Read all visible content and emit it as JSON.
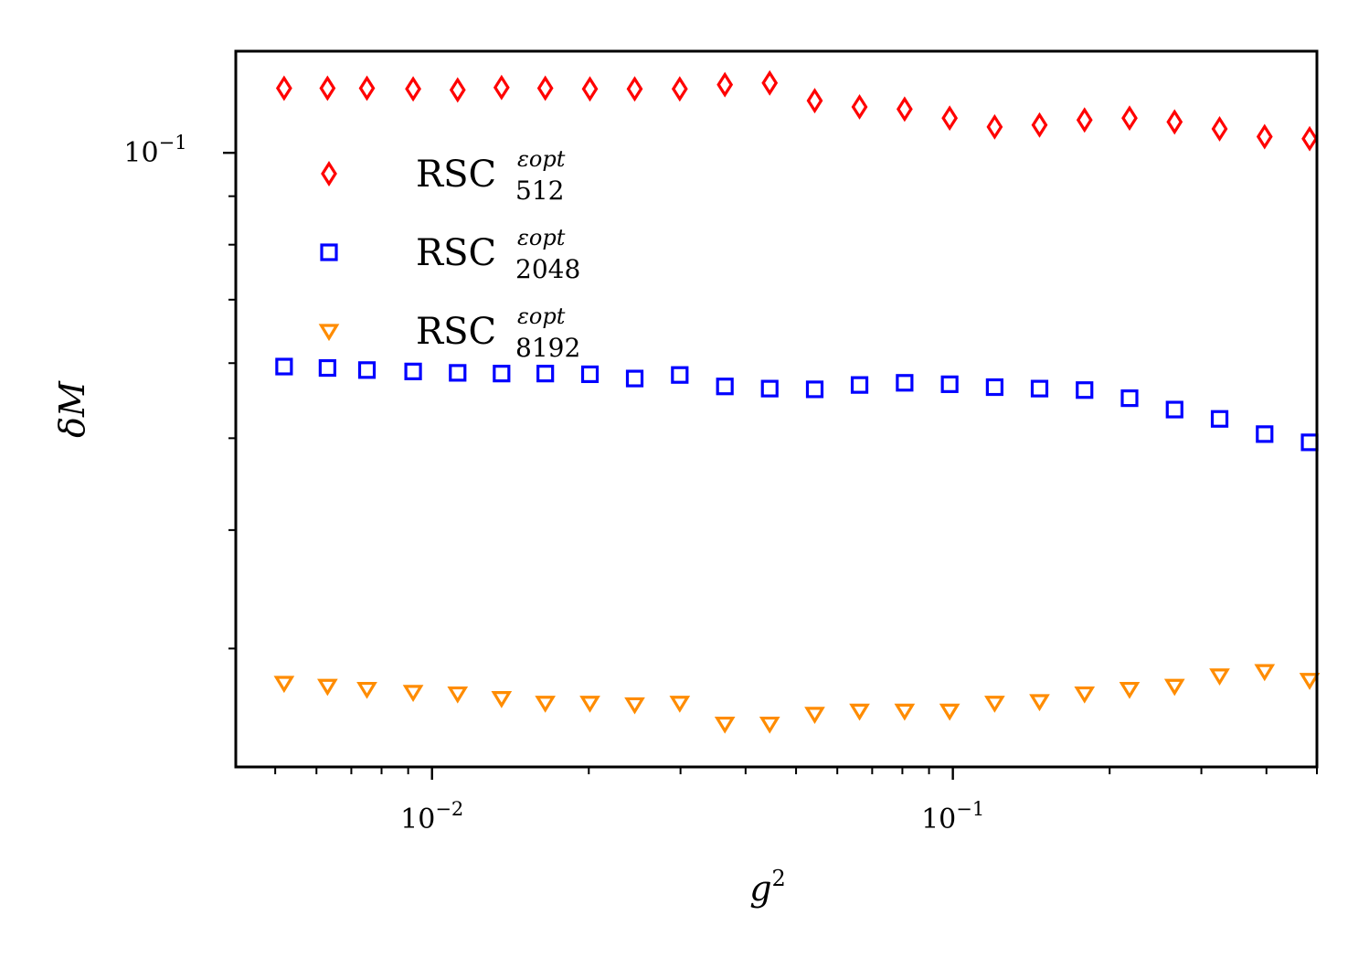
{
  "chart_data": {
    "type": "scatter",
    "xscale": "log",
    "yscale": "log",
    "xlabel": "g",
    "xlabel_sup": "2",
    "ylabel": "δM",
    "xlim": [
      0.0042,
      0.5
    ],
    "ylim": [
      0.0225,
      0.128
    ],
    "x_ticks": [
      {
        "value": 0.01,
        "base": "10",
        "exp": "−2"
      },
      {
        "value": 0.1,
        "base": "10",
        "exp": "−1"
      }
    ],
    "y_ticks": [
      {
        "value": 0.1,
        "base": "10",
        "exp": "−1"
      }
    ],
    "x": [
      0.0052,
      0.0063,
      0.0075,
      0.0092,
      0.0112,
      0.0136,
      0.0165,
      0.0201,
      0.0245,
      0.0299,
      0.0365,
      0.0445,
      0.0543,
      0.0662,
      0.0808,
      0.0986,
      0.1203,
      0.1467,
      0.179,
      0.2184,
      0.2665,
      0.3252,
      0.3968,
      0.4842
    ],
    "legend_position": "upper-left",
    "series": [
      {
        "name": "RSC",
        "superscript": "εopt",
        "subscript": "512",
        "marker": "diamond",
        "color": "#ff0000",
        "values": [
          0.117,
          0.117,
          0.117,
          0.1168,
          0.1165,
          0.1172,
          0.117,
          0.1168,
          0.1168,
          0.1168,
          0.118,
          0.1185,
          0.1135,
          0.1118,
          0.1112,
          0.1088,
          0.1065,
          0.107,
          0.1083,
          0.1088,
          0.1078,
          0.106,
          0.104,
          0.1035
        ]
      },
      {
        "name": "RSC",
        "superscript": "εopt",
        "subscript": "2048",
        "marker": "square",
        "color": "#0000ff",
        "values": [
          0.0595,
          0.0593,
          0.059,
          0.0588,
          0.0586,
          0.0585,
          0.0585,
          0.0584,
          0.0578,
          0.0583,
          0.0567,
          0.0564,
          0.0563,
          0.0569,
          0.0572,
          0.057,
          0.0566,
          0.0564,
          0.0562,
          0.0551,
          0.0536,
          0.0524,
          0.0505,
          0.0495
        ]
      },
      {
        "name": "RSC",
        "superscript": "εopt",
        "subscript": "8192",
        "marker": "triangle_down",
        "color": "#ff8c00",
        "values": [
          0.0276,
          0.0274,
          0.0272,
          0.027,
          0.0269,
          0.0266,
          0.0263,
          0.0263,
          0.0262,
          0.0263,
          0.025,
          0.025,
          0.0256,
          0.0258,
          0.0258,
          0.0258,
          0.0263,
          0.0264,
          0.0269,
          0.0272,
          0.0274,
          0.0281,
          0.0284,
          0.0278
        ]
      }
    ]
  }
}
